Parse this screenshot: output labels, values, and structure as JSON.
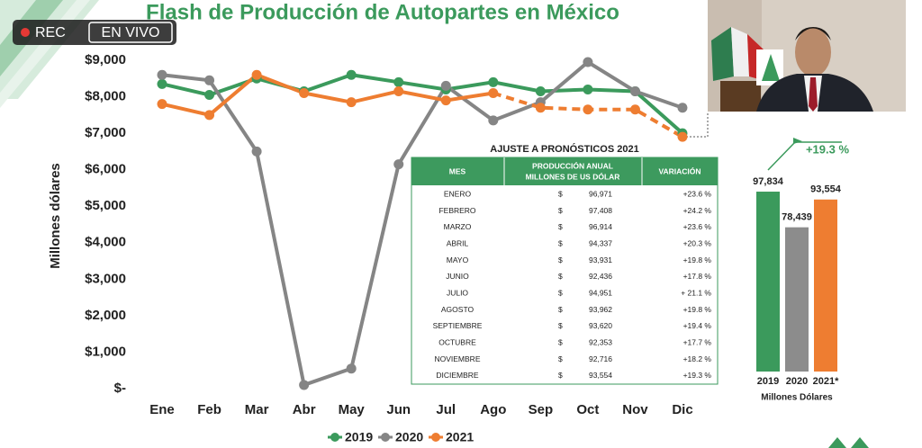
{
  "overlay": {
    "rec": "REC",
    "live": "EN VIVO"
  },
  "chart_data": [
    {
      "type": "line",
      "title": "Flash de Producción de Autopartes en México",
      "ylabel": "Millones dólares",
      "categories": [
        "Ene",
        "Feb",
        "Mar",
        "Abr",
        "May",
        "Jun",
        "Jul",
        "Ago",
        "Sep",
        "Oct",
        "Nov",
        "Dic"
      ],
      "ylim": [
        0,
        9000
      ],
      "yticks": [
        {
          "value": 0,
          "label": "$-"
        },
        {
          "value": 1000,
          "label": "$1,000"
        },
        {
          "value": 2000,
          "label": "$2,000"
        },
        {
          "value": 3000,
          "label": "$3,000"
        },
        {
          "value": 4000,
          "label": "$4,000"
        },
        {
          "value": 5000,
          "label": "$5,000"
        },
        {
          "value": 6000,
          "label": "$6,000"
        },
        {
          "value": 7000,
          "label": "$7,000"
        },
        {
          "value": 8000,
          "label": "$8,000"
        },
        {
          "value": 9000,
          "label": "$9,000"
        }
      ],
      "legend": "bottom",
      "series": [
        {
          "name": "2019",
          "color": "#3b9a5c",
          "values": [
            8350,
            8050,
            8500,
            8150,
            8600,
            8400,
            8200,
            8400,
            8150,
            8200,
            8150,
            7000
          ]
        },
        {
          "name": "2020",
          "color": "#858585",
          "values": [
            8600,
            8450,
            6500,
            100,
            550,
            6150,
            8300,
            7350,
            7850,
            8950,
            8150,
            7700
          ]
        },
        {
          "name": "2021",
          "color": "#ee7d31",
          "values": [
            7800,
            7500,
            8600,
            8100,
            7850,
            8150,
            7900,
            8100,
            7700,
            7650,
            7650,
            6900
          ],
          "dashed_from": "Ago"
        }
      ]
    },
    {
      "type": "bar",
      "xlabel": "Millones Dólares",
      "categories": [
        "2019",
        "2020",
        "2021*"
      ],
      "values": [
        97834,
        78439,
        93554
      ],
      "value_labels": [
        "97,834",
        "78,439",
        "93,554"
      ],
      "colors": [
        "#3b9a5c",
        "#8c8c8c",
        "#ee7d31"
      ],
      "ylim": [
        0,
        100000
      ],
      "annotation": "+19.3 %"
    }
  ],
  "table": {
    "title": "AJUSTE A PRONÓSTICOS 2021",
    "header": [
      "MES",
      "PRODUCCIÓN ANUAL",
      "MILLONES DE US DÓLAR",
      "VARIACIÓN"
    ],
    "rows": [
      [
        "ENERO",
        "$",
        "96,971",
        "+23.6 %"
      ],
      [
        "FEBRERO",
        "$",
        "97,408",
        "+24.2 %"
      ],
      [
        "MARZO",
        "$",
        "96,914",
        "+23.6 %"
      ],
      [
        "ABRIL",
        "$",
        "94,337",
        "+20.3 %"
      ],
      [
        "MAYO",
        "$",
        "93,931",
        "+19.8 %"
      ],
      [
        "JUNIO",
        "$",
        "92,436",
        "+17.8 %"
      ],
      [
        "JULIO",
        "$",
        "94,951",
        "+ 21.1 %"
      ],
      [
        "AGOSTO",
        "$",
        "93,962",
        "+19.8 %"
      ],
      [
        "SEPTIEMBRE",
        "$",
        "93,620",
        "+19.4 %"
      ],
      [
        "OCTUBRE",
        "$",
        "92,353",
        "+17.7 %"
      ],
      [
        "NOVIEMBRE",
        "$",
        "92,716",
        "+18.2 %"
      ],
      [
        "DICIEMBRE",
        "$",
        "93,554",
        "+19.3 %"
      ]
    ]
  }
}
